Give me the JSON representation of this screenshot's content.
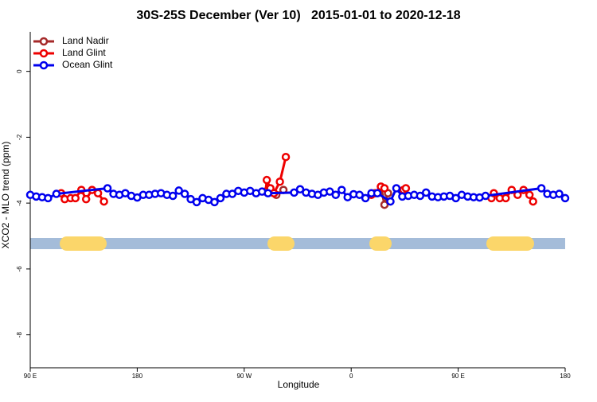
{
  "chart_data": {
    "type": "line",
    "title": "30S-25S December (Ver 10)   2015-01-01 to 2020-12-18",
    "x_label": "Longitude",
    "y_label": "XCO2 - MLO trend (ppm)",
    "xlim": [
      90,
      540
    ],
    "xticks": [
      {
        "value": 90,
        "label": "90 E"
      },
      {
        "value": 180,
        "label": "180"
      },
      {
        "value": 270,
        "label": "90 W"
      },
      {
        "value": 360,
        "label": "0"
      },
      {
        "value": 450,
        "label": "90 E"
      },
      {
        "value": 540,
        "label": "180"
      }
    ],
    "ylim": [
      -9,
      1.2
    ],
    "yticks": [
      0,
      -2,
      -4,
      -6,
      -8
    ],
    "legend": "top-left",
    "series": [
      {
        "name": "Land Nadir",
        "color": "#a52a2a",
        "x": [
          292,
          297,
          303,
          null,
          385,
          388,
          391
        ],
        "values": [
          -3.6,
          -3.75,
          -3.6,
          null,
          -3.5,
          -4.05,
          -3.7
        ]
      },
      {
        "name": "Land Glint",
        "color": "#ee0000",
        "x": [
          116,
          119,
          124,
          128,
          133,
          137,
          142,
          147,
          152,
          null,
          288,
          289,
          292,
          295,
          300,
          305,
          null,
          377,
          380,
          385,
          388,
          null,
          404,
          406,
          null,
          478,
          480,
          485,
          490,
          495,
          500,
          505,
          510,
          513
        ],
        "values": [
          -3.7,
          -3.88,
          -3.85,
          -3.85,
          -3.6,
          -3.88,
          -3.6,
          -3.7,
          -3.95,
          null,
          -3.65,
          -3.3,
          -3.55,
          -3.7,
          -3.35,
          -2.6,
          null,
          -3.75,
          -3.7,
          -3.5,
          -3.55,
          null,
          -3.6,
          -3.55,
          null,
          -3.85,
          -3.7,
          -3.85,
          -3.85,
          -3.6,
          -3.75,
          -3.6,
          -3.75,
          -3.95
        ]
      },
      {
        "name": "Ocean Glint",
        "color": "#0000ee",
        "x": [
          90,
          95,
          100,
          105,
          112,
          155,
          160,
          165,
          170,
          175,
          180,
          185,
          190,
          195,
          200,
          205,
          210,
          215,
          220,
          225,
          230,
          235,
          240,
          245,
          250,
          255,
          260,
          265,
          270,
          275,
          280,
          285,
          290,
          312,
          317,
          322,
          327,
          332,
          337,
          342,
          347,
          352,
          357,
          362,
          367,
          372,
          377,
          382,
          393,
          398,
          403,
          408,
          413,
          418,
          423,
          428,
          433,
          438,
          443,
          448,
          453,
          458,
          463,
          468,
          473,
          520,
          525,
          530,
          535,
          540
        ],
        "values": [
          -3.75,
          -3.8,
          -3.82,
          -3.85,
          -3.72,
          -3.55,
          -3.72,
          -3.75,
          -3.7,
          -3.78,
          -3.83,
          -3.75,
          -3.75,
          -3.72,
          -3.7,
          -3.75,
          -3.78,
          -3.62,
          -3.72,
          -3.88,
          -3.97,
          -3.85,
          -3.9,
          -3.97,
          -3.85,
          -3.72,
          -3.72,
          -3.63,
          -3.68,
          -3.63,
          -3.7,
          -3.65,
          -3.7,
          -3.68,
          -3.58,
          -3.68,
          -3.72,
          -3.75,
          -3.68,
          -3.65,
          -3.75,
          -3.6,
          -3.82,
          -3.73,
          -3.75,
          -3.85,
          -3.7,
          -3.7,
          -3.95,
          -3.55,
          -3.8,
          -3.78,
          -3.75,
          -3.78,
          -3.68,
          -3.8,
          -3.82,
          -3.8,
          -3.78,
          -3.85,
          -3.75,
          -3.8,
          -3.82,
          -3.83,
          -3.78,
          -3.55,
          -3.72,
          -3.75,
          -3.72,
          -3.85
        ]
      }
    ]
  }
}
